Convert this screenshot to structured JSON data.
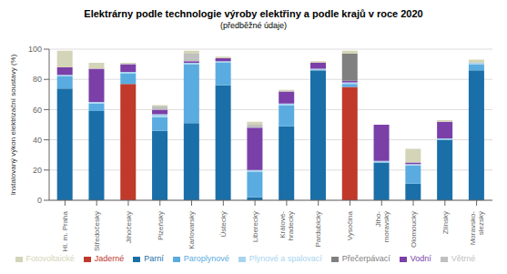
{
  "chart_data": {
    "type": "bar",
    "title": "Elektrárny podle technologie výroby elektřiny a podle krajů v roce 2020",
    "subtitle": "(předběžné údaje)",
    "y_label": "Instalovaný výkon elektrizační soustavy (%)",
    "categories": [
      "Hl. m. Praha",
      "Středočeský",
      "Jihočeský",
      "Plzeňský",
      "Karlovarský",
      "Ústecký",
      "Liberecký",
      "Králové-\nhradecký",
      "Pardubický",
      "Vysočina",
      "Jiho-\nmoravský",
      "Olomoucký",
      "Zlínský",
      "Moravsko-\nslezský"
    ],
    "series": [
      {
        "name": "Jaderné",
        "color": "#c0392b",
        "values": [
          0,
          0,
          77,
          0,
          0,
          0,
          0,
          0,
          0,
          75,
          0,
          0,
          0,
          0
        ]
      },
      {
        "name": "Parní",
        "color": "#1a6fa8",
        "values": [
          74,
          59,
          0,
          46,
          51,
          76,
          2,
          49,
          86,
          0,
          25,
          11,
          40,
          86
        ]
      },
      {
        "name": "Paroplynové",
        "color": "#5aace0",
        "values": [
          8,
          5,
          7,
          9,
          39,
          15,
          17,
          14,
          0,
          2,
          0,
          12,
          0,
          4
        ]
      },
      {
        "name": "Plynové a spalovací",
        "color": "#a8d4f0",
        "values": [
          1,
          1,
          1,
          2,
          1,
          1,
          1,
          1,
          1,
          1,
          1,
          1,
          1,
          1
        ]
      },
      {
        "name": "Vodní",
        "color": "#7b3fa8",
        "values": [
          5,
          22,
          5,
          3,
          1,
          2,
          28,
          8,
          4,
          1,
          24,
          1,
          11,
          0
        ]
      },
      {
        "name": "Přečerpávací",
        "color": "#808080",
        "values": [
          0,
          0,
          0,
          0,
          0,
          0,
          0,
          0,
          0,
          18,
          0,
          0,
          0,
          0
        ]
      },
      {
        "name": "Větrné",
        "color": "#c0c0c0",
        "values": [
          0,
          0,
          0,
          2,
          5,
          0,
          2,
          0,
          0,
          0,
          0,
          0,
          0,
          0
        ]
      },
      {
        "name": "Fotovoltaické",
        "color": "#d4d4b8",
        "values": [
          11,
          4,
          1,
          1,
          2,
          1,
          2,
          1,
          1,
          2,
          0,
          9,
          1,
          2
        ]
      }
    ],
    "stacked": true,
    "ylim": [
      0,
      100
    ],
    "yticks": [
      0,
      20,
      40,
      60,
      80,
      100
    ],
    "grid": true,
    "legend": "bottom"
  }
}
